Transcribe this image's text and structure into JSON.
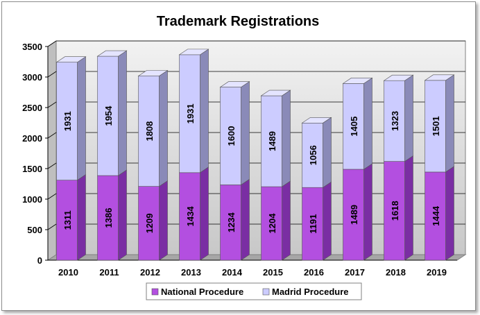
{
  "chart_data": {
    "type": "bar",
    "stacked": true,
    "title": "Trademark Registrations",
    "categories": [
      "2010",
      "2011",
      "2012",
      "2013",
      "2014",
      "2015",
      "2016",
      "2017",
      "2018",
      "2019"
    ],
    "series": [
      {
        "name": "National Procedure",
        "values": [
          1311,
          1386,
          1209,
          1434,
          1234,
          1204,
          1191,
          1489,
          1618,
          1444
        ],
        "color": "#b34fe0"
      },
      {
        "name": "Madrid Procedure",
        "values": [
          1931,
          1954,
          1808,
          1931,
          1600,
          1489,
          1056,
          1405,
          1323,
          1501
        ],
        "color": "#ccccff"
      }
    ],
    "ylim": [
      0,
      3500
    ],
    "yticks": [
      "0",
      "500",
      "1000",
      "1500",
      "2000",
      "2500",
      "3000",
      "3500"
    ],
    "grid": true,
    "legend": "bottom"
  }
}
